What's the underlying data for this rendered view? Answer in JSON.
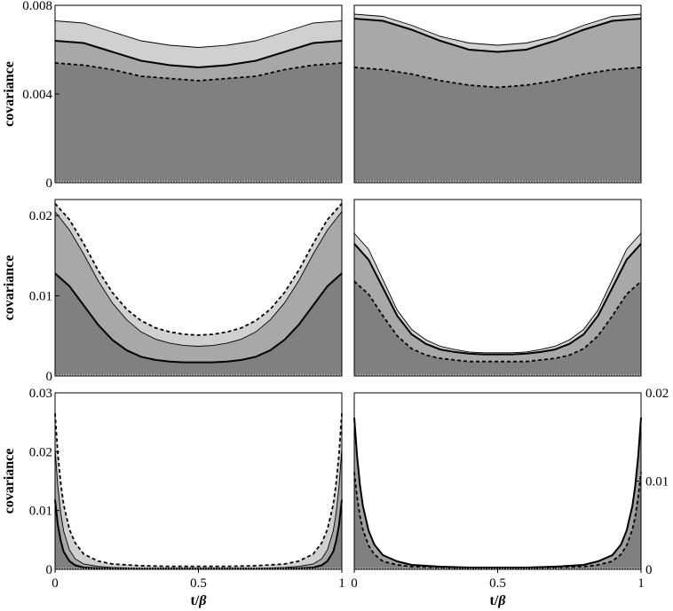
{
  "figure": {
    "ylabel": "covariance",
    "xlabel_prefix": "t/",
    "xlabel_symbol": "β"
  },
  "chart_data": [
    {
      "type": "area",
      "row": 0,
      "col": 0,
      "xlim": [
        0,
        1
      ],
      "ylim": [
        0,
        0.008
      ],
      "yticks": [
        0,
        0.004,
        0.008
      ],
      "ytick_labels": [
        "0",
        "0.004",
        "0.008"
      ],
      "ytick_side": "left",
      "xticks": [],
      "ylabel": "covariance",
      "xlabel": "",
      "x": [
        0,
        0.1,
        0.2,
        0.3,
        0.4,
        0.5,
        0.6,
        0.7,
        0.8,
        0.9,
        1
      ],
      "series": [
        {
          "style": "thin",
          "fill": "#d0d0d0",
          "values": [
            0.0073,
            0.0072,
            0.0068,
            0.0064,
            0.0062,
            0.0061,
            0.0062,
            0.0064,
            0.0068,
            0.0072,
            0.0073
          ]
        },
        {
          "style": "solid",
          "fill": "#a8a8a8",
          "values": [
            0.0064,
            0.0063,
            0.0059,
            0.0055,
            0.0053,
            0.0052,
            0.0053,
            0.0055,
            0.0059,
            0.0063,
            0.0064
          ]
        },
        {
          "style": "dashed",
          "fill": "#808080",
          "values": [
            0.0054,
            0.0053,
            0.0051,
            0.0048,
            0.0047,
            0.0046,
            0.0047,
            0.0048,
            0.0051,
            0.0053,
            0.0054
          ]
        }
      ]
    },
    {
      "type": "area",
      "row": 0,
      "col": 1,
      "xlim": [
        0,
        1
      ],
      "ylim": [
        0,
        0.008
      ],
      "yticks": [],
      "ytick_labels": [],
      "ytick_side": "none",
      "xticks": [],
      "ylabel": "",
      "xlabel": "",
      "x": [
        0,
        0.1,
        0.2,
        0.3,
        0.4,
        0.5,
        0.6,
        0.7,
        0.8,
        0.9,
        1
      ],
      "series": [
        {
          "style": "thin",
          "fill": "#d0d0d0",
          "values": [
            0.0076,
            0.0075,
            0.0071,
            0.0066,
            0.0063,
            0.0062,
            0.0063,
            0.0066,
            0.0071,
            0.0075,
            0.0076
          ]
        },
        {
          "style": "solid",
          "fill": "#a8a8a8",
          "values": [
            0.0074,
            0.0073,
            0.0069,
            0.0064,
            0.006,
            0.0059,
            0.006,
            0.0064,
            0.0069,
            0.0073,
            0.0074
          ]
        },
        {
          "style": "dashed",
          "fill": "#808080",
          "values": [
            0.0052,
            0.0051,
            0.0049,
            0.0046,
            0.0044,
            0.0043,
            0.0044,
            0.0046,
            0.0049,
            0.0051,
            0.0052
          ]
        }
      ]
    },
    {
      "type": "area",
      "row": 1,
      "col": 0,
      "xlim": [
        0,
        1
      ],
      "ylim": [
        0,
        0.022
      ],
      "yticks": [
        0,
        0.01,
        0.02
      ],
      "ytick_labels": [
        "0",
        "0.01",
        "0.02"
      ],
      "ytick_side": "left",
      "xticks": [],
      "ylabel": "covariance",
      "xlabel": "",
      "x": [
        0,
        0.05,
        0.1,
        0.15,
        0.2,
        0.25,
        0.3,
        0.35,
        0.4,
        0.45,
        0.5,
        0.55,
        0.6,
        0.65,
        0.7,
        0.75,
        0.8,
        0.85,
        0.9,
        0.95,
        1
      ],
      "series": [
        {
          "style": "dashed",
          "fill": "#d0d0d0",
          "values": [
            0.0215,
            0.0195,
            0.0165,
            0.0132,
            0.0104,
            0.0083,
            0.0069,
            0.006,
            0.0055,
            0.0052,
            0.0051,
            0.0052,
            0.0055,
            0.006,
            0.0069,
            0.0083,
            0.0104,
            0.0132,
            0.0165,
            0.0195,
            0.0215
          ]
        },
        {
          "style": "thin",
          "fill": "#a8a8a8",
          "values": [
            0.0205,
            0.0182,
            0.0152,
            0.0119,
            0.0091,
            0.007,
            0.0055,
            0.0046,
            0.0041,
            0.0038,
            0.0037,
            0.0038,
            0.0041,
            0.0046,
            0.0055,
            0.007,
            0.0091,
            0.0119,
            0.0152,
            0.0182,
            0.0205
          ]
        },
        {
          "style": "solid",
          "fill": "#808080",
          "values": [
            0.0128,
            0.0112,
            0.0088,
            0.0064,
            0.0045,
            0.0032,
            0.0024,
            0.002,
            0.0018,
            0.0017,
            0.0017,
            0.0017,
            0.0018,
            0.002,
            0.0024,
            0.0032,
            0.0045,
            0.0064,
            0.0088,
            0.0112,
            0.0128
          ]
        }
      ]
    },
    {
      "type": "area",
      "row": 1,
      "col": 1,
      "xlim": [
        0,
        1
      ],
      "ylim": [
        0,
        0.022
      ],
      "yticks": [],
      "ytick_labels": [],
      "ytick_side": "none",
      "xticks": [],
      "ylabel": "",
      "xlabel": "",
      "x": [
        0,
        0.05,
        0.1,
        0.15,
        0.2,
        0.25,
        0.3,
        0.35,
        0.4,
        0.45,
        0.5,
        0.55,
        0.6,
        0.65,
        0.7,
        0.75,
        0.8,
        0.85,
        0.9,
        0.95,
        1
      ],
      "series": [
        {
          "style": "thin",
          "fill": "#d0d0d0",
          "values": [
            0.0178,
            0.0158,
            0.012,
            0.0082,
            0.0058,
            0.0045,
            0.0037,
            0.0033,
            0.003,
            0.0029,
            0.0029,
            0.0029,
            0.003,
            0.0033,
            0.0037,
            0.0045,
            0.0058,
            0.0082,
            0.012,
            0.0158,
            0.0178
          ]
        },
        {
          "style": "solid",
          "fill": "#a8a8a8",
          "values": [
            0.0165,
            0.0145,
            0.011,
            0.0075,
            0.0052,
            0.004,
            0.0033,
            0.003,
            0.0028,
            0.0027,
            0.0027,
            0.0027,
            0.0028,
            0.003,
            0.0033,
            0.004,
            0.0052,
            0.0075,
            0.011,
            0.0145,
            0.0165
          ]
        },
        {
          "style": "dashed",
          "fill": "#808080",
          "values": [
            0.0118,
            0.0102,
            0.0075,
            0.005,
            0.0034,
            0.0026,
            0.0022,
            0.002,
            0.0018,
            0.0018,
            0.0018,
            0.0018,
            0.0018,
            0.002,
            0.0022,
            0.0026,
            0.0034,
            0.005,
            0.0075,
            0.0102,
            0.0118
          ]
        }
      ]
    },
    {
      "type": "area",
      "row": 2,
      "col": 0,
      "xlim": [
        0,
        1
      ],
      "ylim": [
        0,
        0.03
      ],
      "yticks": [
        0,
        0.01,
        0.02,
        0.03
      ],
      "ytick_labels": [
        "0",
        "0.01",
        "0.02",
        "0.03"
      ],
      "ytick_side": "left",
      "xticks": [
        0,
        0.5,
        1
      ],
      "xtick_labels": [
        "0",
        "0.5",
        "1"
      ],
      "ylabel": "covariance",
      "xlabel": "t/β",
      "x": [
        0,
        0.01,
        0.02,
        0.03,
        0.05,
        0.07,
        0.1,
        0.15,
        0.2,
        0.3,
        0.4,
        0.5,
        0.6,
        0.7,
        0.8,
        0.85,
        0.9,
        0.93,
        0.95,
        0.97,
        0.98,
        0.99,
        1
      ],
      "series": [
        {
          "style": "dashed",
          "fill": "#d0d0d0",
          "values": [
            0.0265,
            0.0195,
            0.0145,
            0.011,
            0.0068,
            0.0045,
            0.0026,
            0.0014,
            0.0009,
            0.0006,
            0.0005,
            0.0005,
            0.0005,
            0.0006,
            0.0009,
            0.0014,
            0.0026,
            0.0045,
            0.0068,
            0.011,
            0.0145,
            0.0195,
            0.0265
          ]
        },
        {
          "style": "thin",
          "fill": "#a8a8a8",
          "values": [
            0.0205,
            0.014,
            0.0095,
            0.0065,
            0.0033,
            0.0018,
            0.0009,
            0.0005,
            0.0003,
            0.0002,
            0.0002,
            0.0002,
            0.0002,
            0.0002,
            0.0003,
            0.0005,
            0.0009,
            0.0018,
            0.0033,
            0.0065,
            0.0095,
            0.014,
            0.0205
          ]
        },
        {
          "style": "solid",
          "fill": "#808080",
          "values": [
            0.0118,
            0.0075,
            0.0048,
            0.003,
            0.0014,
            0.0007,
            0.0003,
            0.0002,
            0.0001,
            0.0001,
            0.0001,
            0.0001,
            0.0001,
            0.0001,
            0.0001,
            0.0002,
            0.0003,
            0.0007,
            0.0014,
            0.003,
            0.0048,
            0.0075,
            0.0118
          ]
        }
      ]
    },
    {
      "type": "area",
      "row": 2,
      "col": 1,
      "xlim": [
        0,
        1
      ],
      "ylim": [
        0,
        0.02
      ],
      "yticks": [
        0,
        0.01,
        0.02
      ],
      "ytick_labels": [
        "0",
        "0.01",
        "0.02"
      ],
      "ytick_side": "right",
      "xticks": [
        0,
        0.5,
        1
      ],
      "xtick_labels": [
        "0",
        "0.5",
        "1"
      ],
      "ylabel": "",
      "xlabel": "t/β",
      "x": [
        0,
        0.01,
        0.02,
        0.03,
        0.05,
        0.07,
        0.1,
        0.15,
        0.2,
        0.3,
        0.4,
        0.5,
        0.6,
        0.7,
        0.8,
        0.85,
        0.9,
        0.93,
        0.95,
        0.97,
        0.98,
        0.99,
        1
      ],
      "series": [
        {
          "style": "solid",
          "fill": "#a0a0a0",
          "values": [
            0.0172,
            0.0128,
            0.0095,
            0.0072,
            0.0044,
            0.0028,
            0.0016,
            0.0009,
            0.0005,
            0.0003,
            0.0002,
            0.0002,
            0.0002,
            0.0003,
            0.0005,
            0.0009,
            0.0016,
            0.0028,
            0.0044,
            0.0072,
            0.0095,
            0.0128,
            0.0172
          ]
        },
        {
          "style": "dashed",
          "fill": "#808080",
          "values": [
            0.011,
            0.0082,
            0.006,
            0.0045,
            0.0027,
            0.0017,
            0.0009,
            0.0005,
            0.0003,
            0.0002,
            0.0001,
            0.0001,
            0.0001,
            0.0002,
            0.0003,
            0.0005,
            0.0009,
            0.0017,
            0.0027,
            0.0045,
            0.006,
            0.0082,
            0.011
          ]
        }
      ]
    }
  ]
}
